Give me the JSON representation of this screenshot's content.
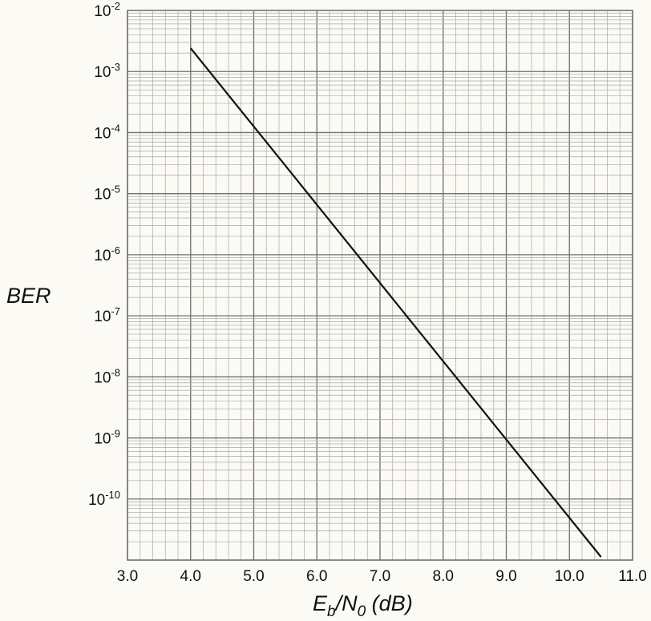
{
  "chart_data": {
    "type": "line",
    "title": "",
    "xlabel": "E_b/N_0 (dB)",
    "xlabel_parts": {
      "e": "E",
      "e_sub": "b",
      "slash": "/N",
      "n_sub": "0",
      "unit": " (dB)"
    },
    "ylabel": "BER",
    "y_scale": "log",
    "grid": true,
    "xlim": [
      3.0,
      11.0
    ],
    "ylim_exponents": [
      -11,
      -2
    ],
    "x_ticks": [
      "3.0",
      "4.0",
      "5.0",
      "6.0",
      "7.0",
      "8.0",
      "9.0",
      "10.0",
      "11.0"
    ],
    "y_ticks": [
      {
        "base": "10",
        "exp": "-2"
      },
      {
        "base": "10",
        "exp": "-3"
      },
      {
        "base": "10",
        "exp": "-4"
      },
      {
        "base": "10",
        "exp": "-5"
      },
      {
        "base": "10",
        "exp": "-6"
      },
      {
        "base": "10",
        "exp": "-7"
      },
      {
        "base": "10",
        "exp": "-8"
      },
      {
        "base": "10",
        "exp": "-9"
      },
      {
        "base": "10",
        "exp": "-10"
      }
    ],
    "series": [
      {
        "x": [
          4.0,
          10.5
        ],
        "y": [
          0.0024,
          1.13e-11
        ]
      }
    ],
    "colors": {
      "grid_major": "#6e6e6e",
      "grid_minor": "#a8a8a8",
      "line": "#111111",
      "background": "#fbfaf5"
    }
  }
}
